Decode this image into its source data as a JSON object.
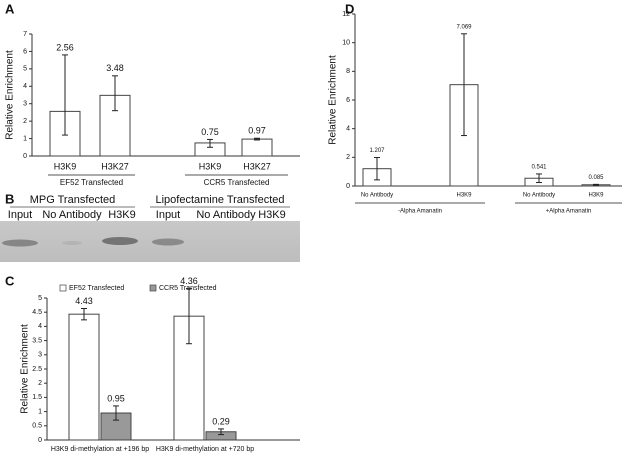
{
  "chart_data": [
    {
      "type": "bar",
      "label": "A",
      "ylabel": "Relative Enrichment",
      "categories": [
        "H3K9",
        "H3K27",
        "H3K9",
        "H3K27"
      ],
      "groups": [
        "EF52 Transfected",
        "CCR5 Transfected"
      ],
      "series": [
        {
          "color": "#ffffff",
          "values": [
            2.56,
            3.48,
            0.75,
            0.97
          ],
          "error_low": [
            1.36,
            0.88,
            0.25,
            0.05
          ],
          "error_high": [
            3.24,
            1.12,
            0.2,
            0.05
          ]
        }
      ],
      "ylim": [
        0,
        7
      ],
      "yticks": [
        0,
        1,
        2,
        3,
        4,
        5,
        6,
        7
      ]
    },
    {
      "type": "grouped_bar",
      "label": "C",
      "ylabel": "Relative Enrichment",
      "categories": [
        "H3K9 di-methylation at +196 bp",
        "H3K9 di-methylation at +720 bp"
      ],
      "series": [
        {
          "name": "EF52 Transfected",
          "color": "#ffffff",
          "values": [
            4.43,
            4.36
          ],
          "error_low": [
            0.2,
            0.97
          ],
          "error_high": [
            0.2,
            0.97
          ]
        },
        {
          "name": "CCR5 Transfected",
          "color": "#999999",
          "values": [
            0.95,
            0.29
          ],
          "error_low": [
            0.25,
            0.1
          ],
          "error_high": [
            0.25,
            0.1
          ]
        }
      ],
      "ylim": [
        0,
        5
      ],
      "yticks": [
        0,
        0.5,
        1,
        1.5,
        2,
        2.5,
        3,
        3.5,
        4,
        4.5,
        5
      ]
    },
    {
      "type": "bar",
      "label": "D",
      "ylabel": "Relative Enrichment",
      "categories": [
        "No Antibody",
        "H3K9",
        "No Antibody",
        "H3K9"
      ],
      "groups": [
        "-Alpha Amanatin",
        "+Alpha Amanatin"
      ],
      "series": [
        {
          "color": "#ffffff",
          "values": [
            1.207,
            7.069,
            0.541,
            0.085
          ],
          "error_low": [
            0.78,
            3.55,
            0.3,
            0.03
          ],
          "error_high": [
            0.78,
            3.55,
            0.3,
            0.03
          ]
        }
      ],
      "ylim": [
        0,
        12
      ],
      "yticks": [
        0,
        2,
        4,
        6,
        8,
        10,
        12
      ]
    }
  ],
  "gel": {
    "label": "B",
    "groups": [
      "MPG Transfected",
      "Lipofectamine Transfected"
    ],
    "lanes": [
      "Input",
      "No Antibody",
      "H3K9",
      "Input",
      "No Antibody",
      "H3K9"
    ]
  }
}
